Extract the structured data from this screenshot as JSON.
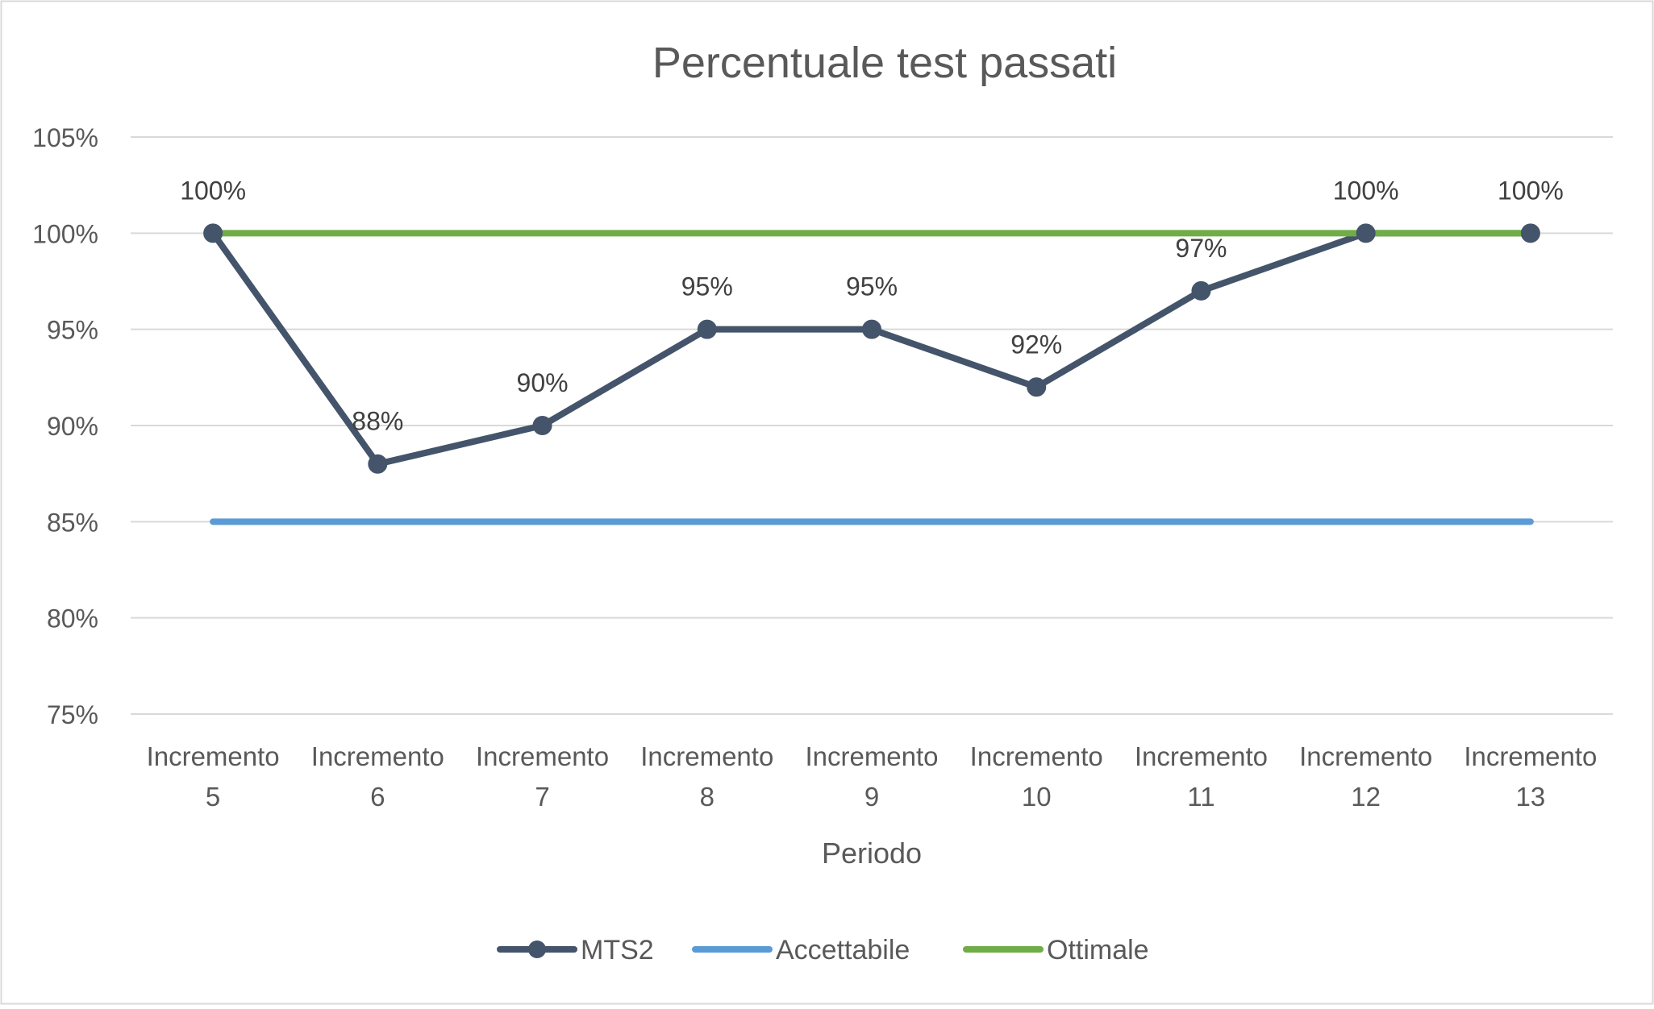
{
  "chart_data": {
    "type": "line",
    "title": "Percentuale test passati",
    "xlabel": "Periodo",
    "ylabel": "",
    "categories": [
      [
        "Incremento",
        "5"
      ],
      [
        "Incremento",
        "6"
      ],
      [
        "Incremento",
        "7"
      ],
      [
        "Incremento",
        "8"
      ],
      [
        "Incremento",
        "9"
      ],
      [
        "Incremento",
        "10"
      ],
      [
        "Incremento",
        "11"
      ],
      [
        "Incremento",
        "12"
      ],
      [
        "Incremento",
        "13"
      ]
    ],
    "ylim": [
      75,
      105
    ],
    "yticks": [
      75,
      80,
      85,
      90,
      95,
      100,
      105
    ],
    "ytick_labels": [
      "75%",
      "80%",
      "85%",
      "90%",
      "95%",
      "100%",
      "105%"
    ],
    "grid": true,
    "legend_position": "bottom",
    "series": [
      {
        "name": "MTS2",
        "values": [
          100,
          88,
          90,
          95,
          95,
          92,
          97,
          100,
          100
        ],
        "data_labels": [
          "100%",
          "88%",
          "90%",
          "95%",
          "95%",
          "92%",
          "97%",
          "100%",
          "100%"
        ],
        "color": "#44546a",
        "markers": true
      },
      {
        "name": "Accettabile",
        "values": [
          85,
          85,
          85,
          85,
          85,
          85,
          85,
          85,
          85
        ],
        "color": "#5b9bd5",
        "markers": false
      },
      {
        "name": "Ottimale",
        "values": [
          100,
          100,
          100,
          100,
          100,
          100,
          100,
          100,
          100
        ],
        "color": "#70ad47",
        "markers": false
      }
    ]
  }
}
